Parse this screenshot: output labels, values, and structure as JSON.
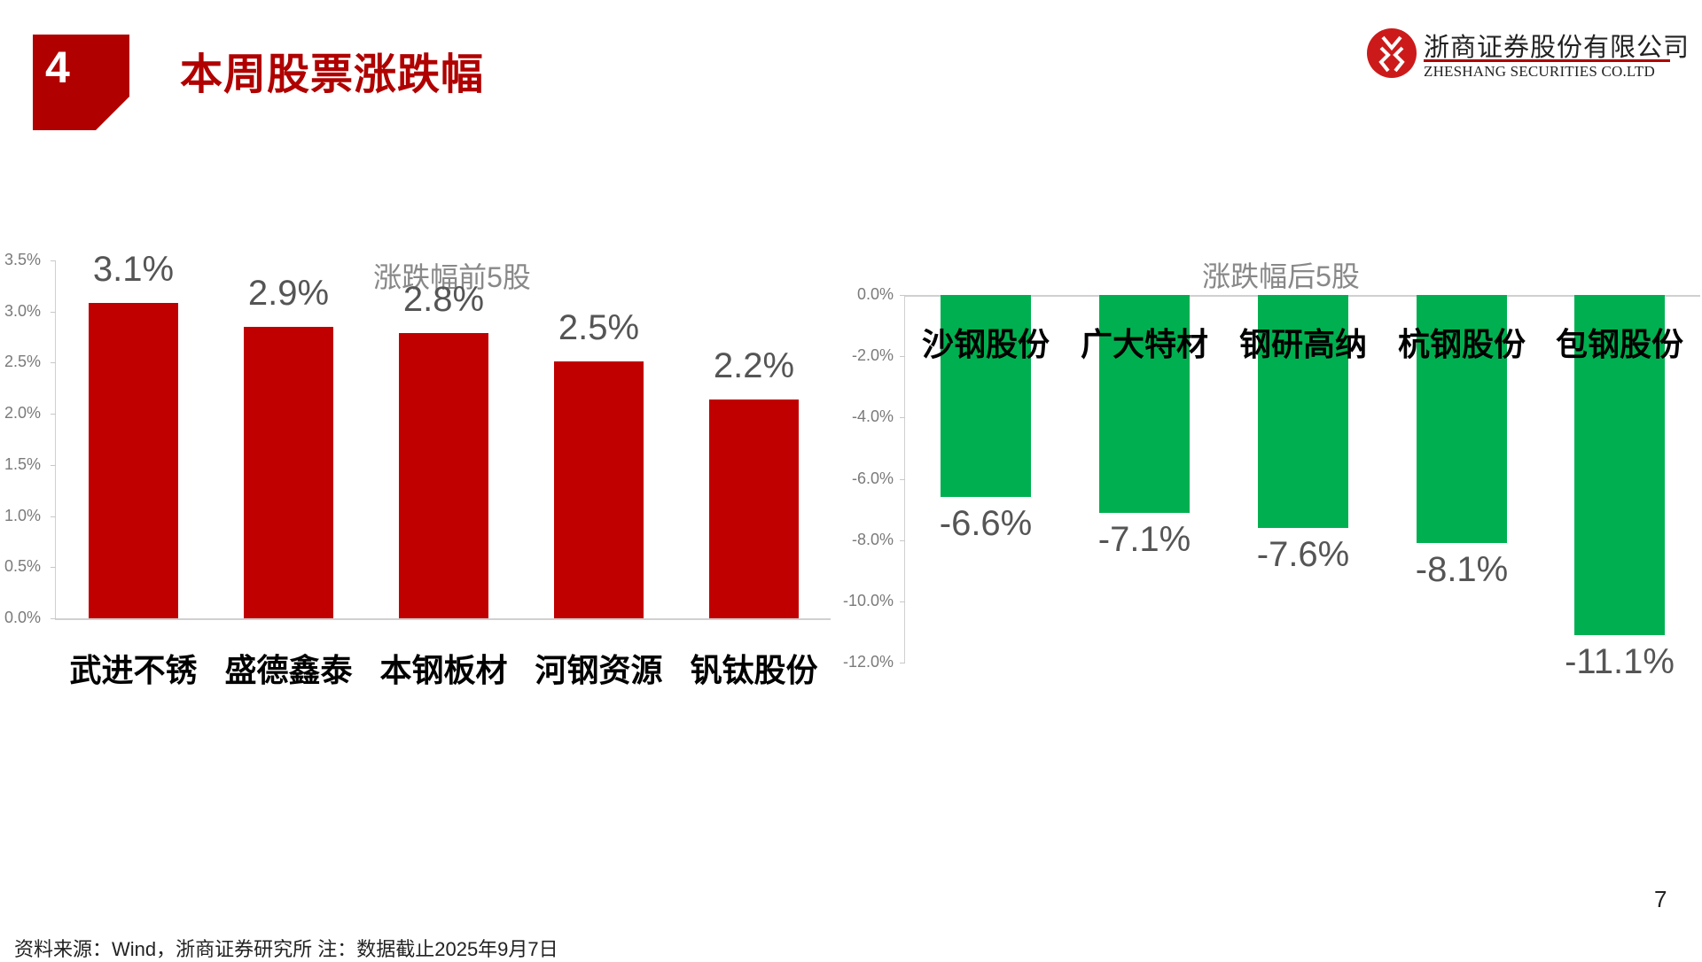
{
  "header": {
    "section_number": "4",
    "title": "本周股票涨跌幅",
    "logo": {
      "name_cn": "浙商证券股份有限公司",
      "name_en": "ZHESHANG SECURITIES CO.LTD",
      "icon": "zheshang-logo-icon",
      "color": "#cc1a1a"
    }
  },
  "colors": {
    "accent": "#b00000",
    "gain_bar": "#c00000",
    "loss_bar": "#00b050",
    "axis": "#d0d0d0",
    "label": "#555555"
  },
  "chart_data": [
    {
      "type": "bar",
      "title": "涨跌幅前5股",
      "categories": [
        "武进不锈",
        "盛德鑫泰",
        "本钢板材",
        "河钢资源",
        "钒钛股份"
      ],
      "values": [
        3.1,
        2.9,
        2.8,
        2.5,
        2.2
      ],
      "value_labels": [
        "3.1%",
        "2.9%",
        "2.8%",
        "2.5%",
        "2.2%"
      ],
      "bar_heights_pct": [
        3.08,
        2.85,
        2.79,
        2.51,
        2.14
      ],
      "xlabel": "",
      "ylabel": "",
      "ylim": [
        0,
        3.5
      ],
      "yticks": [
        "3.5%",
        "3.0%",
        "2.5%",
        "2.0%",
        "1.5%",
        "1.0%",
        "0.5%",
        "0.0%"
      ],
      "grid": false,
      "color": "#c00000"
    },
    {
      "type": "bar",
      "title": "涨跌幅后5股",
      "categories": [
        "沙钢股份",
        "广大特材",
        "钢研高纳",
        "杭钢股份",
        "包钢股份"
      ],
      "values": [
        -6.6,
        -7.1,
        -7.6,
        -8.1,
        -11.1
      ],
      "value_labels": [
        "-6.6%",
        "-7.1%",
        "-7.6%",
        "-8.1%",
        "-11.1%"
      ],
      "xlabel": "",
      "ylabel": "",
      "ylim": [
        -12,
        0
      ],
      "yticks": [
        "0.0%",
        "-2.0%",
        "-4.0%",
        "-6.0%",
        "-8.0%",
        "-10.0%",
        "-12.0%"
      ],
      "grid": false,
      "color": "#00b050"
    }
  ],
  "footer": {
    "source": "资料来源：Wind，浙商证券研究所    注：数据截止2025年9月7日",
    "page_number": "7"
  }
}
